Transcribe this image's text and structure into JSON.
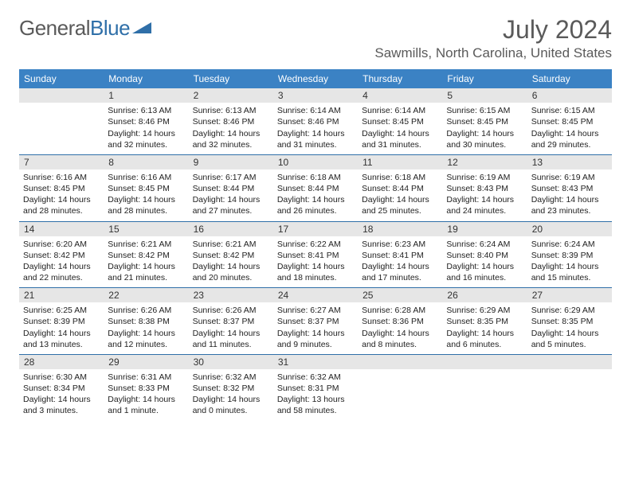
{
  "logo": {
    "text1": "General",
    "text2": "Blue",
    "triangle_color": "#2f6fa8"
  },
  "title": "July 2024",
  "location": "Sawmills, North Carolina, United States",
  "header_bg": "#3b82c4",
  "rule_color": "#2f6fa8",
  "daynum_bg": "#e6e6e6",
  "days_of_week": [
    "Sunday",
    "Monday",
    "Tuesday",
    "Wednesday",
    "Thursday",
    "Friday",
    "Saturday"
  ],
  "weeks": [
    [
      {
        "n": "",
        "l1": "",
        "l2": "",
        "l3": "",
        "l4": ""
      },
      {
        "n": "1",
        "l1": "Sunrise: 6:13 AM",
        "l2": "Sunset: 8:46 PM",
        "l3": "Daylight: 14 hours",
        "l4": "and 32 minutes."
      },
      {
        "n": "2",
        "l1": "Sunrise: 6:13 AM",
        "l2": "Sunset: 8:46 PM",
        "l3": "Daylight: 14 hours",
        "l4": "and 32 minutes."
      },
      {
        "n": "3",
        "l1": "Sunrise: 6:14 AM",
        "l2": "Sunset: 8:46 PM",
        "l3": "Daylight: 14 hours",
        "l4": "and 31 minutes."
      },
      {
        "n": "4",
        "l1": "Sunrise: 6:14 AM",
        "l2": "Sunset: 8:45 PM",
        "l3": "Daylight: 14 hours",
        "l4": "and 31 minutes."
      },
      {
        "n": "5",
        "l1": "Sunrise: 6:15 AM",
        "l2": "Sunset: 8:45 PM",
        "l3": "Daylight: 14 hours",
        "l4": "and 30 minutes."
      },
      {
        "n": "6",
        "l1": "Sunrise: 6:15 AM",
        "l2": "Sunset: 8:45 PM",
        "l3": "Daylight: 14 hours",
        "l4": "and 29 minutes."
      }
    ],
    [
      {
        "n": "7",
        "l1": "Sunrise: 6:16 AM",
        "l2": "Sunset: 8:45 PM",
        "l3": "Daylight: 14 hours",
        "l4": "and 28 minutes."
      },
      {
        "n": "8",
        "l1": "Sunrise: 6:16 AM",
        "l2": "Sunset: 8:45 PM",
        "l3": "Daylight: 14 hours",
        "l4": "and 28 minutes."
      },
      {
        "n": "9",
        "l1": "Sunrise: 6:17 AM",
        "l2": "Sunset: 8:44 PM",
        "l3": "Daylight: 14 hours",
        "l4": "and 27 minutes."
      },
      {
        "n": "10",
        "l1": "Sunrise: 6:18 AM",
        "l2": "Sunset: 8:44 PM",
        "l3": "Daylight: 14 hours",
        "l4": "and 26 minutes."
      },
      {
        "n": "11",
        "l1": "Sunrise: 6:18 AM",
        "l2": "Sunset: 8:44 PM",
        "l3": "Daylight: 14 hours",
        "l4": "and 25 minutes."
      },
      {
        "n": "12",
        "l1": "Sunrise: 6:19 AM",
        "l2": "Sunset: 8:43 PM",
        "l3": "Daylight: 14 hours",
        "l4": "and 24 minutes."
      },
      {
        "n": "13",
        "l1": "Sunrise: 6:19 AM",
        "l2": "Sunset: 8:43 PM",
        "l3": "Daylight: 14 hours",
        "l4": "and 23 minutes."
      }
    ],
    [
      {
        "n": "14",
        "l1": "Sunrise: 6:20 AM",
        "l2": "Sunset: 8:42 PM",
        "l3": "Daylight: 14 hours",
        "l4": "and 22 minutes."
      },
      {
        "n": "15",
        "l1": "Sunrise: 6:21 AM",
        "l2": "Sunset: 8:42 PM",
        "l3": "Daylight: 14 hours",
        "l4": "and 21 minutes."
      },
      {
        "n": "16",
        "l1": "Sunrise: 6:21 AM",
        "l2": "Sunset: 8:42 PM",
        "l3": "Daylight: 14 hours",
        "l4": "and 20 minutes."
      },
      {
        "n": "17",
        "l1": "Sunrise: 6:22 AM",
        "l2": "Sunset: 8:41 PM",
        "l3": "Daylight: 14 hours",
        "l4": "and 18 minutes."
      },
      {
        "n": "18",
        "l1": "Sunrise: 6:23 AM",
        "l2": "Sunset: 8:41 PM",
        "l3": "Daylight: 14 hours",
        "l4": "and 17 minutes."
      },
      {
        "n": "19",
        "l1": "Sunrise: 6:24 AM",
        "l2": "Sunset: 8:40 PM",
        "l3": "Daylight: 14 hours",
        "l4": "and 16 minutes."
      },
      {
        "n": "20",
        "l1": "Sunrise: 6:24 AM",
        "l2": "Sunset: 8:39 PM",
        "l3": "Daylight: 14 hours",
        "l4": "and 15 minutes."
      }
    ],
    [
      {
        "n": "21",
        "l1": "Sunrise: 6:25 AM",
        "l2": "Sunset: 8:39 PM",
        "l3": "Daylight: 14 hours",
        "l4": "and 13 minutes."
      },
      {
        "n": "22",
        "l1": "Sunrise: 6:26 AM",
        "l2": "Sunset: 8:38 PM",
        "l3": "Daylight: 14 hours",
        "l4": "and 12 minutes."
      },
      {
        "n": "23",
        "l1": "Sunrise: 6:26 AM",
        "l2": "Sunset: 8:37 PM",
        "l3": "Daylight: 14 hours",
        "l4": "and 11 minutes."
      },
      {
        "n": "24",
        "l1": "Sunrise: 6:27 AM",
        "l2": "Sunset: 8:37 PM",
        "l3": "Daylight: 14 hours",
        "l4": "and 9 minutes."
      },
      {
        "n": "25",
        "l1": "Sunrise: 6:28 AM",
        "l2": "Sunset: 8:36 PM",
        "l3": "Daylight: 14 hours",
        "l4": "and 8 minutes."
      },
      {
        "n": "26",
        "l1": "Sunrise: 6:29 AM",
        "l2": "Sunset: 8:35 PM",
        "l3": "Daylight: 14 hours",
        "l4": "and 6 minutes."
      },
      {
        "n": "27",
        "l1": "Sunrise: 6:29 AM",
        "l2": "Sunset: 8:35 PM",
        "l3": "Daylight: 14 hours",
        "l4": "and 5 minutes."
      }
    ],
    [
      {
        "n": "28",
        "l1": "Sunrise: 6:30 AM",
        "l2": "Sunset: 8:34 PM",
        "l3": "Daylight: 14 hours",
        "l4": "and 3 minutes."
      },
      {
        "n": "29",
        "l1": "Sunrise: 6:31 AM",
        "l2": "Sunset: 8:33 PM",
        "l3": "Daylight: 14 hours",
        "l4": "and 1 minute."
      },
      {
        "n": "30",
        "l1": "Sunrise: 6:32 AM",
        "l2": "Sunset: 8:32 PM",
        "l3": "Daylight: 14 hours",
        "l4": "and 0 minutes."
      },
      {
        "n": "31",
        "l1": "Sunrise: 6:32 AM",
        "l2": "Sunset: 8:31 PM",
        "l3": "Daylight: 13 hours",
        "l4": "and 58 minutes."
      },
      {
        "n": "",
        "l1": "",
        "l2": "",
        "l3": "",
        "l4": ""
      },
      {
        "n": "",
        "l1": "",
        "l2": "",
        "l3": "",
        "l4": ""
      },
      {
        "n": "",
        "l1": "",
        "l2": "",
        "l3": "",
        "l4": ""
      }
    ]
  ]
}
